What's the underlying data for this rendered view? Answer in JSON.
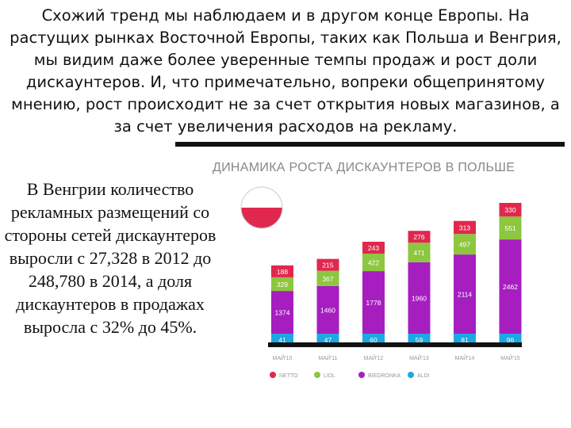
{
  "text": {
    "intro": "Схожий тренд мы наблюдаем и в другом конце Европы. На растущих рынках Восточной Европы, таких как Польша и Венгрия, мы видим даже более уверенные темпы продаж и рост доли дискаунтеров. И, что примечательно, вопреки общепринятому мнению, рост происходит не за счет открытия новых магазинов, а за счет увеличения расходов на рекламу.",
    "hungary": "В Венгрии количество рекламных размещений со стороны сетей дискаунтеров выросли с 27,328 в 2012 до 248,780 в 2014, а доля дискаунтеров в продажах выросла с 32% до 45%."
  },
  "colors": {
    "netto": "#e0284f",
    "lidl": "#8dc63f",
    "biedronka": "#a61ec0",
    "aldi": "#1ca8e0",
    "flag_red": "#e0284f",
    "label": "#ffffff",
    "axis_text": "#999999"
  },
  "chart_data": {
    "type": "bar",
    "stacked": true,
    "title": "ДИНАМИКА РОСТА ДИСКАУНТЕРОВ В ПОЛЬШЕ",
    "categories": [
      "МАЙ'10",
      "МАЙ'11",
      "МАЙ'12",
      "МАЙ'13",
      "МАЙ'14",
      "МАЙ'15"
    ],
    "series": [
      {
        "name": "ALDI",
        "color": "#1ca8e0",
        "values": [
          41,
          47,
          60,
          59,
          81,
          96
        ]
      },
      {
        "name": "BIEDRONKA",
        "color": "#a61ec0",
        "values": [
          1374,
          1460,
          1778,
          1960,
          2114,
          2462
        ]
      },
      {
        "name": "LIDL",
        "color": "#8dc63f",
        "values": [
          329,
          367,
          422,
          471,
          497,
          551
        ]
      },
      {
        "name": "NETTO",
        "color": "#e0284f",
        "values": [
          188,
          215,
          243,
          276,
          313,
          330
        ]
      }
    ],
    "legend_order": [
      "NETTO",
      "LIDL",
      "BIEDRONKA",
      "ALDI"
    ],
    "legend_position": "bottom",
    "grid": false
  }
}
